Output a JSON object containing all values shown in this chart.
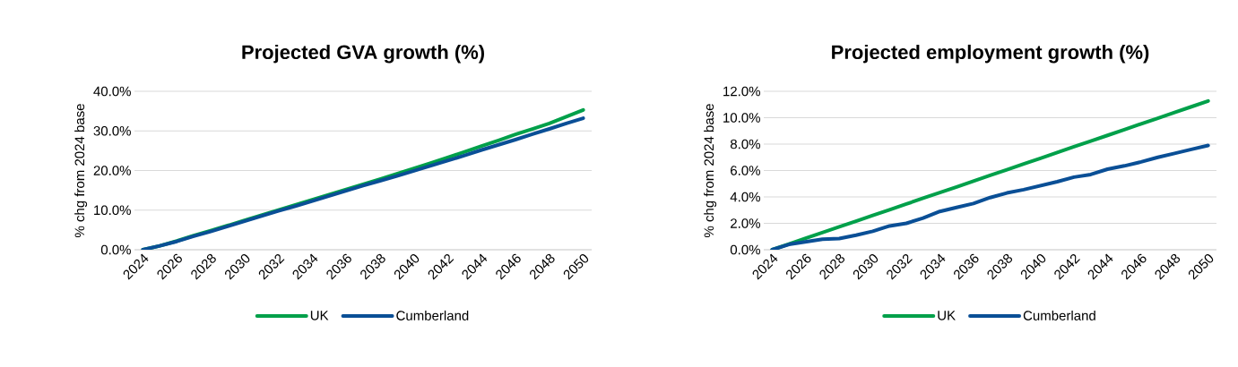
{
  "chart_data": [
    {
      "type": "line",
      "title": "Projected GVA growth (%)",
      "ylabel": "% chg from 2024 base",
      "categories": [
        "2024",
        null,
        "2026",
        null,
        "2028",
        null,
        "2030",
        null,
        "2032",
        null,
        "2034",
        null,
        "2036",
        null,
        "2038",
        null,
        "2040",
        null,
        "2042",
        null,
        "2044",
        null,
        "2046",
        null,
        "2048",
        null,
        "2050"
      ],
      "series": [
        {
          "name": "UK",
          "color": "#00a04a",
          "values": [
            0,
            1.0,
            2.2,
            3.6,
            4.8,
            6.1,
            7.4,
            8.7,
            10.0,
            11.3,
            12.6,
            13.9,
            15.2,
            16.5,
            17.8,
            19.2,
            20.5,
            21.9,
            23.3,
            24.7,
            26.2,
            27.6,
            29.1,
            30.5,
            31.9,
            33.6,
            35.3
          ]
        },
        {
          "name": "Cumberland",
          "color": "#0a4f96",
          "values": [
            0,
            1.0,
            2.1,
            3.4,
            4.6,
            5.9,
            7.2,
            8.5,
            9.8,
            11.0,
            12.3,
            13.6,
            14.9,
            16.2,
            17.4,
            18.6,
            19.9,
            21.2,
            22.5,
            23.8,
            25.2,
            26.5,
            27.8,
            29.2,
            30.5,
            31.9,
            33.2
          ]
        }
      ],
      "ylim": [
        0,
        40
      ],
      "yticks": [
        {
          "value": 0,
          "label": "0.0%"
        },
        {
          "value": 10,
          "label": "10.0%"
        },
        {
          "value": 20,
          "label": "20.0%"
        },
        {
          "value": 30,
          "label": "30.0%"
        },
        {
          "value": 40,
          "label": "40.0%"
        }
      ],
      "grid": "y",
      "legend": "bottom"
    },
    {
      "type": "line",
      "title": "Projected employment growth (%)",
      "ylabel": "% chg from 2024 base",
      "categories": [
        "2024",
        null,
        "2026",
        null,
        "2028",
        null,
        "2030",
        null,
        "2032",
        null,
        "2034",
        null,
        "2036",
        null,
        "2038",
        null,
        "2040",
        null,
        "2042",
        null,
        "2044",
        null,
        "2046",
        null,
        "2048",
        null,
        "2050"
      ],
      "series": [
        {
          "name": "UK",
          "color": "#00a04a",
          "values": [
            0,
            0.43,
            0.87,
            1.3,
            1.73,
            2.16,
            2.6,
            3.03,
            3.46,
            3.9,
            4.33,
            4.76,
            5.2,
            5.63,
            6.06,
            6.5,
            6.93,
            7.36,
            7.8,
            8.23,
            8.66,
            9.1,
            9.53,
            9.96,
            10.4,
            10.83,
            11.27
          ]
        },
        {
          "name": "Cumberland",
          "color": "#0a4f96",
          "values": [
            0,
            0.4,
            0.6,
            0.8,
            0.85,
            1.1,
            1.4,
            1.8,
            2.0,
            2.4,
            2.9,
            3.2,
            3.5,
            3.95,
            4.3,
            4.55,
            4.85,
            5.15,
            5.5,
            5.7,
            6.1,
            6.35,
            6.65,
            7.0,
            7.3,
            7.6,
            7.9
          ]
        }
      ],
      "ylim": [
        0,
        12
      ],
      "yticks": [
        {
          "value": 0,
          "label": "0.0%"
        },
        {
          "value": 2,
          "label": "2.0%"
        },
        {
          "value": 4,
          "label": "4.0%"
        },
        {
          "value": 6,
          "label": "6.0%"
        },
        {
          "value": 8,
          "label": "8.0%"
        },
        {
          "value": 10,
          "label": "10.0%"
        },
        {
          "value": 12,
          "label": "12.0%"
        }
      ],
      "grid": "y",
      "legend": "bottom"
    }
  ]
}
